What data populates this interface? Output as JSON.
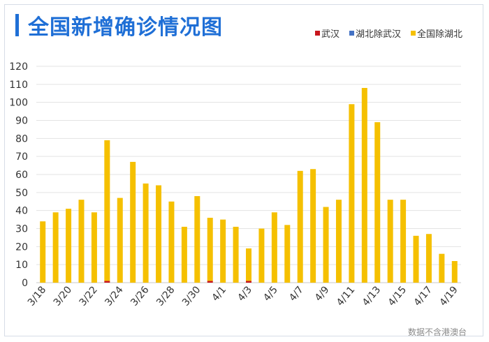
{
  "title": "全国新增确诊情况图",
  "note": "数据不含港澳台",
  "colors": {
    "wuhan": "#c8161d",
    "hubei_ex_wuhan": "#4472c4",
    "national_ex_hubei": "#f5c000",
    "title": "#1f6fd6",
    "grid": "#e3e3e3"
  },
  "chart_data": {
    "type": "bar",
    "stacked": true,
    "title": "全国新增确诊情况图",
    "xlabel": "",
    "ylabel": "",
    "ylim": [
      0,
      120
    ],
    "yticks": [
      0,
      10,
      20,
      30,
      40,
      50,
      60,
      70,
      80,
      90,
      100,
      110,
      120
    ],
    "grid": true,
    "legend_position": "top-right",
    "categories": [
      "3/18",
      "3/19",
      "3/20",
      "3/21",
      "3/22",
      "3/23",
      "3/24",
      "3/25",
      "3/26",
      "3/27",
      "3/28",
      "3/29",
      "3/30",
      "3/31",
      "4/1",
      "4/2",
      "4/3",
      "4/4",
      "4/5",
      "4/6",
      "4/7",
      "4/8",
      "4/9",
      "4/10",
      "4/11",
      "4/12",
      "4/13",
      "4/14",
      "4/15",
      "4/16",
      "4/17",
      "4/18",
      "4/19"
    ],
    "x_tick_labels": [
      "3/18",
      "3/20",
      "3/22",
      "3/24",
      "3/26",
      "3/28",
      "3/30",
      "4/1",
      "4/3",
      "4/5",
      "4/7",
      "4/9",
      "4/11",
      "4/13",
      "4/15",
      "4/17",
      "4/19"
    ],
    "series": [
      {
        "name": "武汉",
        "values": [
          0,
          0,
          0,
          0,
          0,
          1,
          0,
          0,
          0,
          0,
          0,
          0,
          0,
          1,
          0,
          0,
          1,
          0,
          0,
          0,
          0,
          0,
          0,
          0,
          0,
          0,
          0,
          0,
          0,
          0,
          0,
          0,
          0
        ]
      },
      {
        "name": "湖北除武汉",
        "values": [
          0,
          0,
          0,
          0,
          0,
          0,
          0,
          0,
          0,
          0,
          0,
          0,
          0,
          0,
          0,
          0,
          0,
          0,
          0,
          0,
          0,
          0,
          0,
          0,
          0,
          0,
          0,
          0,
          0,
          0,
          0,
          0,
          0
        ]
      },
      {
        "name": "全国除湖北",
        "values": [
          34,
          39,
          41,
          46,
          39,
          78,
          47,
          67,
          55,
          54,
          45,
          31,
          48,
          35,
          35,
          31,
          18,
          30,
          39,
          32,
          62,
          63,
          42,
          46,
          99,
          108,
          89,
          46,
          46,
          26,
          27,
          16,
          12
        ]
      }
    ]
  }
}
